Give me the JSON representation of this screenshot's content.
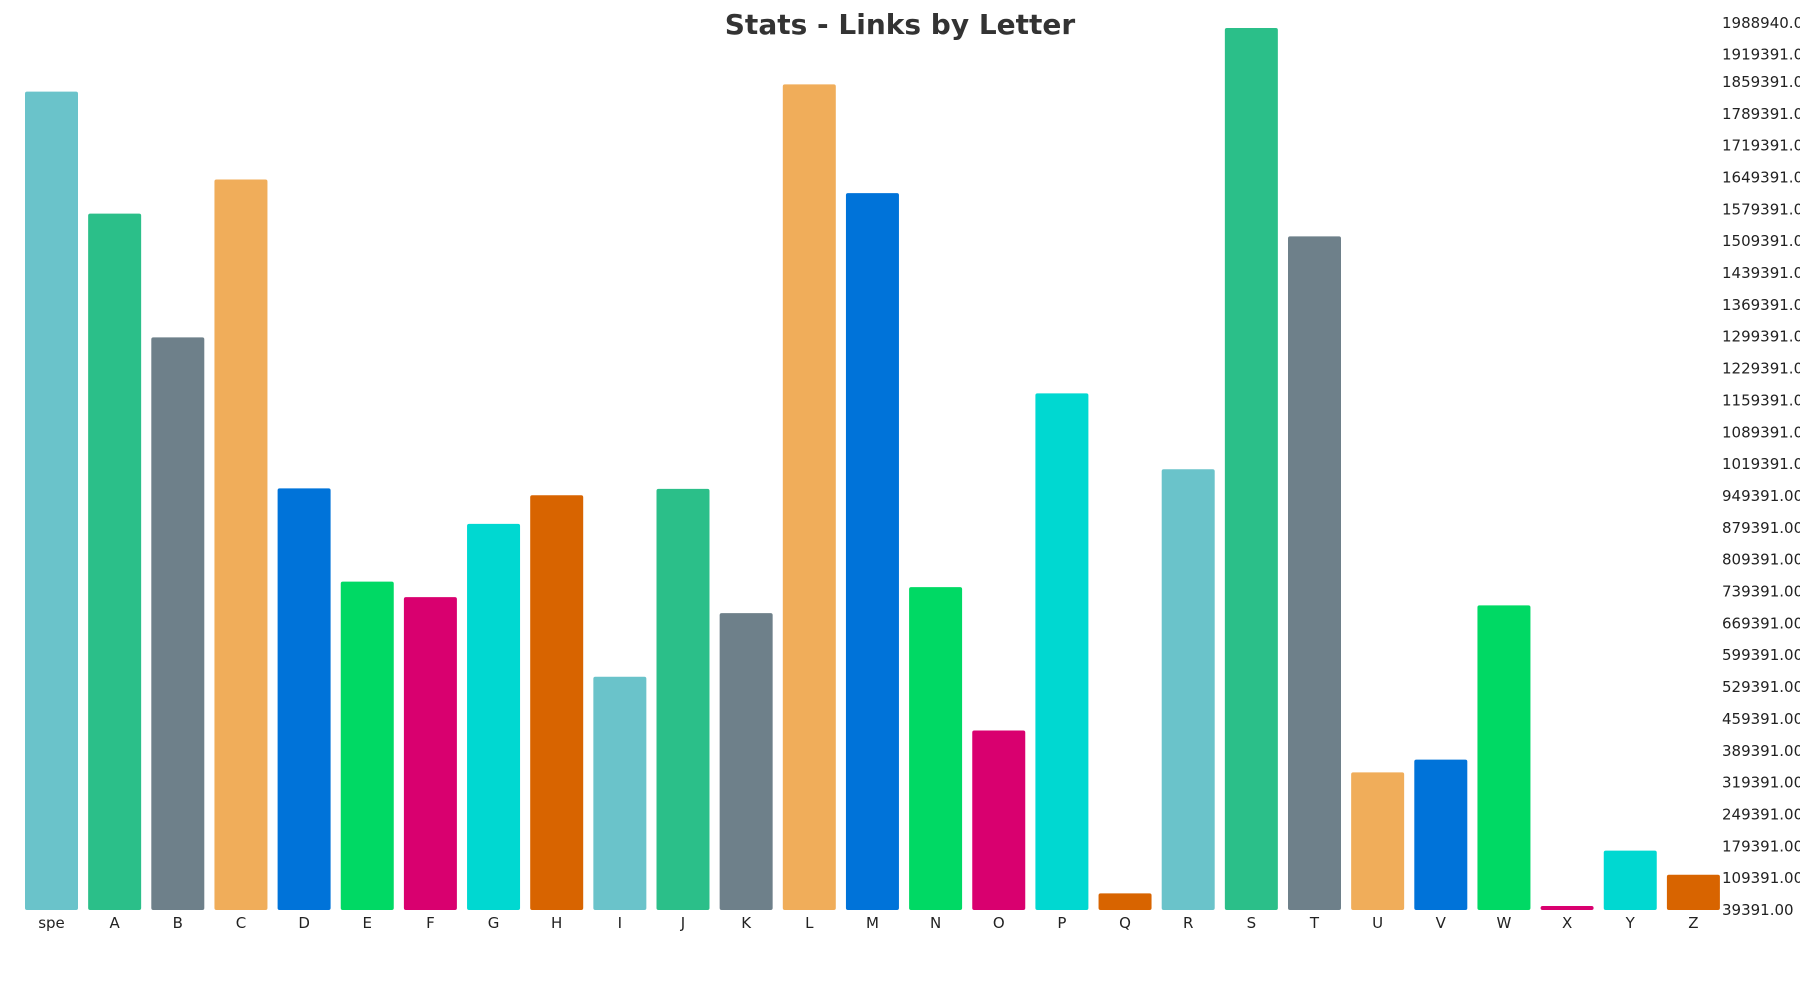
{
  "chart_data": {
    "type": "bar",
    "title": "Stats - Links by Letter",
    "xlabel": "",
    "ylabel": "",
    "ylim": [
      39391,
      1988940
    ],
    "y_axis_position": "right",
    "grid": false,
    "legend": "none",
    "y_ticks": [
      "1988940.00",
      "1919391.00",
      "1859391.00",
      "1789391.00",
      "1719391.00",
      "1649391.00",
      "1579391.00",
      "1509391.00",
      "1439391.00",
      "1369391.00",
      "1299391.00",
      "1229391.00",
      "1159391.00",
      "1089391.00",
      "1019391.00",
      "949391.00",
      "879391.00",
      "809391.00",
      "739391.00",
      "669391.00",
      "599391.00",
      "529391.00",
      "459391.00",
      "389391.00",
      "319391.00",
      "249391.00",
      "179391.00",
      "109391.00",
      "39391.00"
    ],
    "categories": [
      "spe",
      "A",
      "B",
      "C",
      "D",
      "E",
      "F",
      "G",
      "H",
      "I",
      "J",
      "K",
      "L",
      "M",
      "N",
      "O",
      "P",
      "Q",
      "R",
      "S",
      "T",
      "U",
      "V",
      "W",
      "X",
      "Y",
      "Z"
    ],
    "values": [
      1838000,
      1570000,
      1298000,
      1645000,
      966000,
      761000,
      727000,
      888000,
      951000,
      552000,
      965000,
      692000,
      1854000,
      1615000,
      749000,
      434000,
      1175000,
      76000,
      1008000,
      1978000,
      1520000,
      342000,
      370000,
      709000,
      44000,
      170000,
      117000
    ],
    "colors": [
      "#6ac3ca",
      "#2bbf89",
      "#6e808a",
      "#f0ad5a",
      "#0073d9",
      "#00d964",
      "#d9006f",
      "#00d8d1",
      "#d86400",
      "#6ac3ca",
      "#2bbf89",
      "#6e808a",
      "#f0ad5a",
      "#0073d9",
      "#00d964",
      "#d9006f",
      "#00d8d1",
      "#d86400",
      "#6ac3ca",
      "#2bbf89",
      "#6e808a",
      "#f0ad5a",
      "#0073d9",
      "#00d964",
      "#d9006f",
      "#00d8d1",
      "#d86400"
    ]
  }
}
